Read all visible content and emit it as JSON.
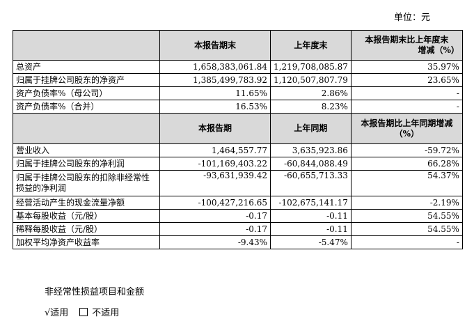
{
  "unit_label": "单位：元",
  "table": {
    "header1": {
      "col1": "本报告期末",
      "col2": "上年度末",
      "col3_line1": "本报告期末比上年度末",
      "col3_line2": "增减（%）"
    },
    "rows1": [
      {
        "label": "总资产",
        "v1": "1,658,383,061.84",
        "v2": "1,219,708,085.87",
        "v3": "35.97%"
      },
      {
        "label": "归属于挂牌公司股东的净资产",
        "v1": "1,385,499,783.92",
        "v2": "1,120,507,807.79",
        "v3": "23.65%"
      },
      {
        "label": "资产负债率%（母公司）",
        "v1": "11.65%",
        "v2": "2.86%",
        "v3": "-"
      },
      {
        "label": "资产负债率%（合并）",
        "v1": "16.53%",
        "v2": "8.23%",
        "v3": "-"
      }
    ],
    "header2": {
      "col1": "本报告期",
      "col2": "上年同期",
      "col3_line1": "本报告期比上年同期增减",
      "col3_line2": "（%）"
    },
    "rows2": [
      {
        "label": "营业收入",
        "v1": "1,464,557.77",
        "v2": "3,635,923.86",
        "v3": "-59.72%"
      },
      {
        "label": "归属于挂牌公司股东的净利润",
        "v1": "-101,169,403.22",
        "v2": "-60,844,088.49",
        "v3": "66.28%"
      },
      {
        "label": "归属于挂牌公司股东的扣除非经常性损益的净利润",
        "v1": "-93,631,939.42",
        "v2": "-60,655,713.33",
        "v3": "54.37%"
      },
      {
        "label": "经营活动产生的现金流量净额",
        "v1": "-100,427,216.65",
        "v2": "-102,675,141.17",
        "v3": "-2.19%"
      },
      {
        "label": "基本每股收益（元/股）",
        "v1": "-0.17",
        "v2": "-0.11",
        "v3": "54.55%"
      },
      {
        "label": "稀释每股收益（元/股）",
        "v1": "-0.17",
        "v2": "-0.11",
        "v3": "54.55%"
      },
      {
        "label": "加权平均净资产收益率",
        "v1": "-9.43%",
        "v2": "-5.47%",
        "v3": "-"
      }
    ]
  },
  "section_title": "非经常性损益项目和金额",
  "options": {
    "applicable": "√适用",
    "not_applicable": "不适用"
  }
}
